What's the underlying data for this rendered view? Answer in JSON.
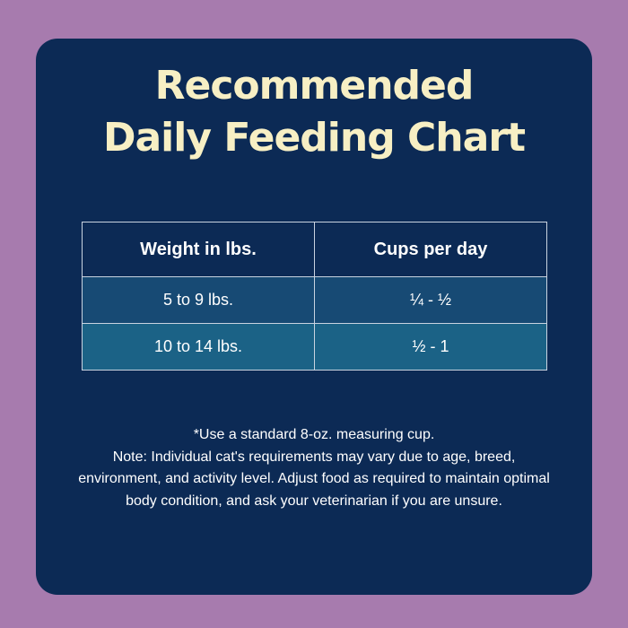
{
  "title": [
    "Recommended",
    "Daily Feeding Chart"
  ],
  "table": {
    "header": [
      "Weight in lbs.",
      "Cups per day"
    ],
    "rows": [
      [
        "5 to 9 lbs.",
        "¼ - ½"
      ],
      [
        "10 to 14 lbs.",
        "½ - 1"
      ]
    ]
  },
  "notes": [
    "*Use a standard 8-oz. measuring cup.",
    "Note: Individual cat's requirements may vary due to age, breed, environment, and activity level. Adjust food as required to maintain optimal body condition, and ask your veterinarian if you are unsure."
  ]
}
